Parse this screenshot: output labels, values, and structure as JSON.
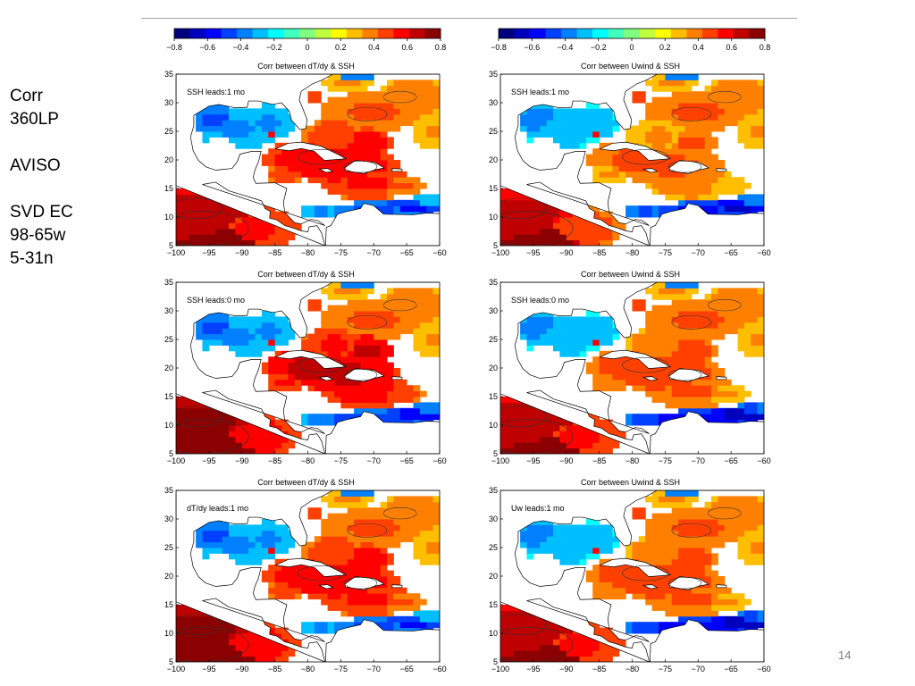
{
  "side_notes": [
    "Corr",
    "360LP",
    "",
    "AVISO",
    "",
    "SVD EC",
    "98-65w",
    "5-31n"
  ],
  "page_number": "14",
  "colorbar": {
    "ticks": [
      "−0.8",
      "−0.6",
      "−0.4",
      "−0.2",
      "0",
      "0.2",
      "0.4",
      "0.6",
      "0.8"
    ],
    "colors": [
      "#00007f",
      "#0000bf",
      "#0000ff",
      "#0040ff",
      "#0080ff",
      "#00bfff",
      "#00ffff",
      "#40ffbf",
      "#80ff80",
      "#bfff40",
      "#ffff00",
      "#ffbf00",
      "#ff8000",
      "#ff4000",
      "#ff0000",
      "#bf0000",
      "#8b0000"
    ]
  },
  "chart_data": [
    {
      "type": "heatmap",
      "title": "Corr between dT/dy & SSH",
      "annotation": "SSH leads:1 mo",
      "xlim": [
        -100,
        -60
      ],
      "ylim": [
        5,
        35
      ],
      "clim": [
        -0.8,
        0.8
      ],
      "x_ticks": [
        "−100",
        "−95",
        "−90",
        "−85",
        "−80",
        "−75",
        "−70",
        "−65",
        "−60"
      ],
      "y_ticks": [
        "35",
        "30",
        "25",
        "20",
        "15",
        "10",
        "5"
      ],
      "regions": {
        "eastern_pacific": 0.7,
        "gulf_of_mexico": -0.35,
        "caribbean": 0.6,
        "atlantic_north": 0.45,
        "atlantic_band_10n": -0.45
      }
    },
    {
      "type": "heatmap",
      "title": "Corr between Uwind & SSH",
      "annotation": "SSH leads:1 mo",
      "xlim": [
        -100,
        -60
      ],
      "ylim": [
        5,
        35
      ],
      "clim": [
        -0.8,
        0.8
      ],
      "x_ticks": [
        "−100",
        "−95",
        "−90",
        "−85",
        "−80",
        "−75",
        "−70",
        "−65",
        "−60"
      ],
      "y_ticks": [
        "35",
        "30",
        "25",
        "20",
        "15",
        "10",
        "5"
      ],
      "regions": {
        "eastern_pacific": 0.65,
        "gulf_of_mexico": -0.3,
        "caribbean": 0.45,
        "atlantic_north": 0.45,
        "atlantic_band_10n": -0.55
      }
    },
    {
      "type": "heatmap",
      "title": "Corr between dT/dy & SSH",
      "annotation": "SSH leads:0 mo",
      "xlim": [
        -100,
        -60
      ],
      "ylim": [
        5,
        35
      ],
      "clim": [
        -0.8,
        0.8
      ],
      "x_ticks": [
        "−100",
        "−95",
        "−90",
        "−85",
        "−80",
        "−75",
        "−70",
        "−65",
        "−60"
      ],
      "y_ticks": [
        "35",
        "30",
        "25",
        "20",
        "15",
        "10",
        "5"
      ],
      "regions": {
        "eastern_pacific": 0.75,
        "gulf_of_mexico": -0.35,
        "caribbean": 0.65,
        "atlantic_north": 0.45,
        "atlantic_band_10n": -0.5
      }
    },
    {
      "type": "heatmap",
      "title": "Corr between Uwind & SSH",
      "annotation": "SSH leads:0 mo",
      "xlim": [
        -100,
        -60
      ],
      "ylim": [
        5,
        35
      ],
      "clim": [
        -0.8,
        0.8
      ],
      "x_ticks": [
        "−100",
        "−95",
        "−90",
        "−85",
        "−80",
        "−75",
        "−70",
        "−65",
        "−60"
      ],
      "y_ticks": [
        "35",
        "30",
        "25",
        "20",
        "15",
        "10",
        "5"
      ],
      "regions": {
        "eastern_pacific": 0.7,
        "gulf_of_mexico": -0.3,
        "caribbean": 0.5,
        "atlantic_north": 0.45,
        "atlantic_band_10n": -0.6
      }
    },
    {
      "type": "heatmap",
      "title": "Corr between dT/dy & SSH",
      "annotation": "dT/dy leads:1 mo",
      "xlim": [
        -100,
        -60
      ],
      "ylim": [
        5,
        35
      ],
      "clim": [
        -0.8,
        0.8
      ],
      "x_ticks": [
        "−100",
        "−95",
        "−90",
        "−85",
        "−80",
        "−75",
        "−70",
        "−65",
        "−60"
      ],
      "y_ticks": [
        "35",
        "30",
        "25",
        "20",
        "15",
        "10",
        "5"
      ],
      "regions": {
        "eastern_pacific": 0.75,
        "gulf_of_mexico": -0.35,
        "caribbean": 0.6,
        "atlantic_north": 0.45,
        "atlantic_band_10n": -0.45
      }
    },
    {
      "type": "heatmap",
      "title": "Corr between Uwind & SSH",
      "annotation": "Uw leads:1 mo",
      "xlim": [
        -100,
        -60
      ],
      "ylim": [
        5,
        35
      ],
      "clim": [
        -0.8,
        0.8
      ],
      "x_ticks": [
        "−100",
        "−95",
        "−90",
        "−85",
        "−80",
        "−75",
        "−70",
        "−65",
        "−60"
      ],
      "y_ticks": [
        "35",
        "30",
        "25",
        "20",
        "15",
        "10",
        "5"
      ],
      "regions": {
        "eastern_pacific": 0.7,
        "gulf_of_mexico": -0.3,
        "caribbean": 0.5,
        "atlantic_north": 0.45,
        "atlantic_band_10n": -0.6
      }
    }
  ]
}
